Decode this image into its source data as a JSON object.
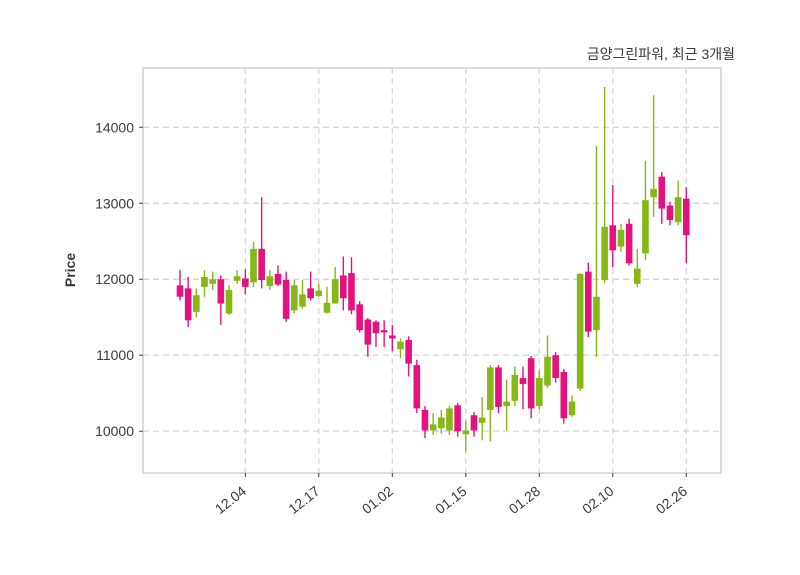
{
  "header": {
    "title": "금양그린파워, 최근 3개월"
  },
  "chart_data": {
    "type": "candlestick",
    "title": "금양그린파워, 최근 3개월",
    "ylabel": "Price",
    "ylim": [
      9450,
      14780
    ],
    "yticks": [
      10000,
      11000,
      12000,
      13000,
      14000
    ],
    "xtick_labels": [
      "12.04",
      "12.17",
      "01.02",
      "01.15",
      "01.28",
      "02.10",
      "02.26"
    ],
    "xtick_indices": [
      8,
      17,
      26,
      35,
      44,
      53,
      62
    ],
    "grid": true,
    "legend": "none",
    "up_color": "#85b815",
    "down_color": "#e5117e",
    "grid_color": "#d9d9d9",
    "border_color": "#d3d3d3",
    "text_color": "#3a3a3a",
    "ohlc_order": [
      "open",
      "high",
      "low",
      "close"
    ],
    "ohlc": [
      [
        11920,
        12120,
        11720,
        11770
      ],
      [
        11880,
        12030,
        11370,
        11460
      ],
      [
        11570,
        11880,
        11500,
        11790
      ],
      [
        11900,
        12120,
        11770,
        12030
      ],
      [
        11940,
        12100,
        11860,
        12000
      ],
      [
        12000,
        12050,
        11400,
        11680
      ],
      [
        11550,
        11920,
        11530,
        11860
      ],
      [
        11980,
        12120,
        11940,
        12040
      ],
      [
        12010,
        12130,
        11800,
        11900
      ],
      [
        11960,
        12490,
        11900,
        12400
      ],
      [
        12400,
        13080,
        11880,
        11990
      ],
      [
        11910,
        12120,
        11860,
        12040
      ],
      [
        12070,
        12180,
        11910,
        11930
      ],
      [
        11990,
        12100,
        11440,
        11480
      ],
      [
        11590,
        11990,
        11550,
        11920
      ],
      [
        11640,
        11990,
        11610,
        11800
      ],
      [
        11880,
        12100,
        11720,
        11750
      ],
      [
        11780,
        11940,
        11770,
        11850
      ],
      [
        11560,
        11900,
        11550,
        11690
      ],
      [
        11680,
        12160,
        11680,
        12000
      ],
      [
        12050,
        12300,
        11590,
        11750
      ],
      [
        12080,
        12290,
        11540,
        11590
      ],
      [
        11670,
        11710,
        11300,
        11330
      ],
      [
        11470,
        11490,
        10980,
        11140
      ],
      [
        11440,
        11460,
        11110,
        11290
      ],
      [
        11330,
        11460,
        11110,
        11300
      ],
      [
        11260,
        11400,
        11050,
        11220
      ],
      [
        11080,
        11220,
        10960,
        11180
      ],
      [
        11200,
        11250,
        10720,
        10890
      ],
      [
        10870,
        10940,
        10240,
        10300
      ],
      [
        10280,
        10330,
        9910,
        10010
      ],
      [
        10010,
        10240,
        9950,
        10090
      ],
      [
        10040,
        10280,
        9970,
        10180
      ],
      [
        10010,
        10330,
        9950,
        10300
      ],
      [
        10340,
        10370,
        9930,
        10000
      ],
      [
        9960,
        10140,
        9730,
        10010
      ],
      [
        10210,
        10250,
        9930,
        10010
      ],
      [
        10110,
        10450,
        9880,
        10180
      ],
      [
        10280,
        10870,
        9870,
        10840
      ],
      [
        10840,
        10870,
        10240,
        10320
      ],
      [
        10330,
        10680,
        10010,
        10390
      ],
      [
        10400,
        10850,
        10330,
        10740
      ],
      [
        10700,
        10850,
        10290,
        10620
      ],
      [
        10960,
        10990,
        10170,
        10300
      ],
      [
        10330,
        10800,
        10290,
        10700
      ],
      [
        10600,
        11260,
        10570,
        10980
      ],
      [
        11000,
        11040,
        10640,
        10700
      ],
      [
        10780,
        10820,
        10100,
        10170
      ],
      [
        10210,
        10470,
        10190,
        10390
      ],
      [
        10560,
        12080,
        10530,
        12070
      ],
      [
        12100,
        12220,
        11240,
        11310
      ],
      [
        11330,
        13750,
        10980,
        11770
      ],
      [
        11990,
        14530,
        11950,
        12690
      ],
      [
        12710,
        13240,
        12160,
        12380
      ],
      [
        12430,
        12730,
        12360,
        12650
      ],
      [
        12730,
        12800,
        12180,
        12210
      ],
      [
        11940,
        12400,
        11900,
        12140
      ],
      [
        12340,
        13560,
        12250,
        13040
      ],
      [
        13080,
        14420,
        12820,
        13190
      ],
      [
        13350,
        13410,
        12730,
        12930
      ],
      [
        12970,
        13020,
        12710,
        12780
      ],
      [
        12750,
        13300,
        12710,
        13080
      ],
      [
        13060,
        13210,
        12210,
        12580
      ]
    ]
  }
}
